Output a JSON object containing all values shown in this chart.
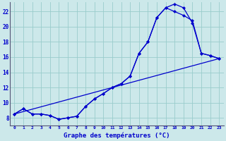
{
  "title": "Graphe des températures (°C)",
  "bg_color": "#cce8ea",
  "grid_color": "#99cccc",
  "line_color": "#0000cc",
  "ylabel_color": "#0000cc",
  "xlabel_color": "#0000cc",
  "figsize": [
    3.2,
    2.0
  ],
  "dpi": 100,
  "xlim": [
    -0.5,
    23.5
  ],
  "ylim": [
    7.0,
    23.2
  ],
  "yticks": [
    8,
    10,
    12,
    14,
    16,
    18,
    20,
    22
  ],
  "curve1_x": [
    0,
    1,
    2,
    3,
    4,
    5,
    6,
    7,
    8,
    9,
    10,
    11,
    12,
    13,
    14,
    15,
    16,
    17,
    18,
    19,
    20,
    21,
    22,
    23
  ],
  "curve1_y": [
    8.5,
    9.2,
    8.5,
    8.5,
    8.3,
    7.8,
    8.0,
    8.2,
    9.5,
    10.5,
    11.2,
    12.0,
    12.5,
    13.5,
    16.5,
    18.0,
    21.2,
    22.5,
    23.0,
    22.5,
    20.5,
    16.5,
    16.2,
    15.8
  ],
  "curve2_x": [
    0,
    1,
    2,
    3,
    4,
    5,
    6,
    7,
    8,
    9,
    10,
    11,
    12,
    13,
    14,
    15,
    16,
    17,
    18,
    19,
    20,
    21,
    22,
    23
  ],
  "curve2_y": [
    8.5,
    9.2,
    8.5,
    8.5,
    8.3,
    7.8,
    8.0,
    8.2,
    9.5,
    10.5,
    11.2,
    12.0,
    12.5,
    13.5,
    16.5,
    18.0,
    21.2,
    22.5,
    22.0,
    21.5,
    20.8,
    16.5,
    16.2,
    15.8
  ],
  "curve3_x": [
    0,
    23
  ],
  "curve3_y": [
    8.5,
    15.8
  ]
}
